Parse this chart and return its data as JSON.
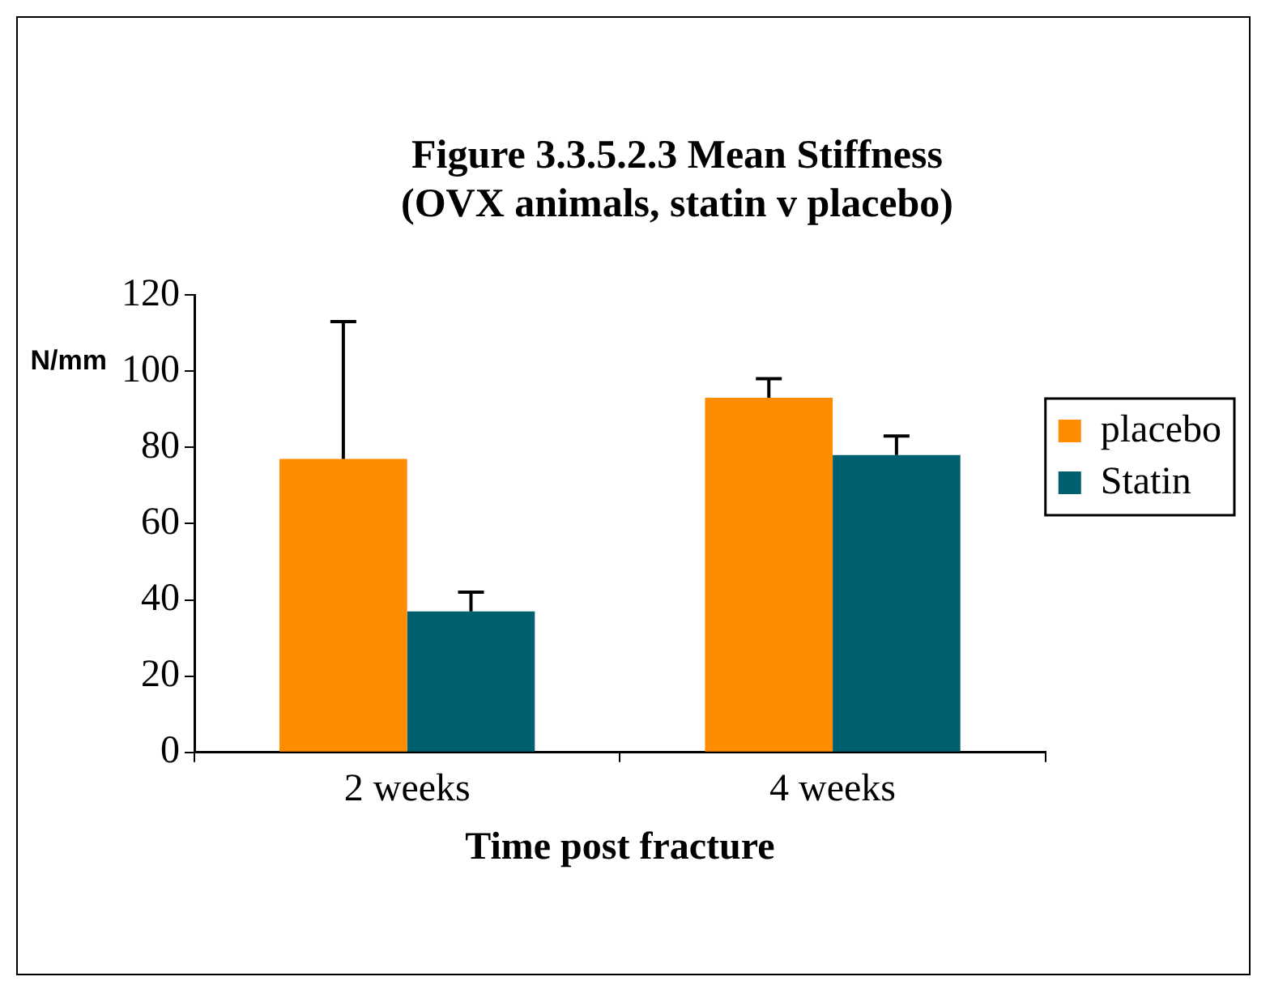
{
  "chart_data": {
    "type": "bar",
    "title": "Figure 3.3.5.2.3 Mean Stiffness\n(OVX animals, statin v placebo)",
    "xlabel": "Time post fracture",
    "ylabel": "N/mm",
    "categories": [
      "2 weeks",
      "4 weeks"
    ],
    "series": [
      {
        "name": "placebo",
        "color": "#ff8c00",
        "values": [
          77,
          93
        ],
        "errors": [
          [
            77,
            113
          ],
          [
            93,
            98
          ]
        ]
      },
      {
        "name": "Statin",
        "color": "#006070",
        "values": [
          37,
          78
        ],
        "errors": [
          [
            37,
            42
          ],
          [
            78,
            83
          ]
        ]
      }
    ],
    "ylim": [
      0,
      120
    ],
    "yticks": [
      0,
      20,
      40,
      60,
      80,
      100,
      120
    ],
    "legend": "right"
  }
}
